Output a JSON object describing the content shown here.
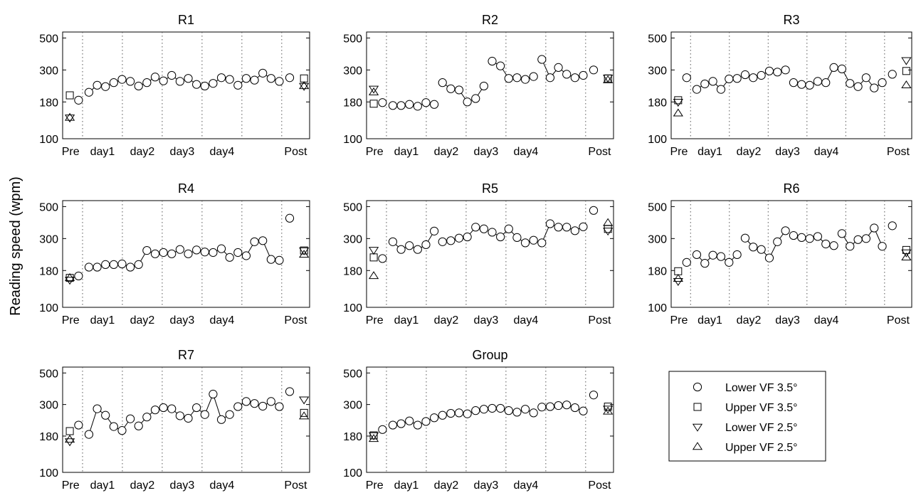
{
  "figure": {
    "ylabel": "Reading speed (wpm)"
  },
  "chart_data": [
    {
      "type": "scatter",
      "title": "R1",
      "yscale": "log",
      "ylim": [
        100,
        550
      ],
      "yticks": [
        100,
        180,
        300,
        500
      ],
      "xticklabels": [
        "Pre",
        "day1",
        "day2",
        "day3",
        "day4",
        "Post"
      ],
      "pre": {
        "upper_3_5": 200,
        "lower_2_5": 140,
        "upper_2_5": 140
      },
      "pre_lower_3_5": 185,
      "training": [
        210,
        235,
        230,
        245,
        258,
        250,
        232,
        245,
        268,
        252,
        275,
        250,
        262,
        238,
        232,
        242,
        265,
        258,
        235,
        262,
        255,
        285,
        262,
        250
      ],
      "post_lower_3_5": 265,
      "post": {
        "upper_3_5": 262,
        "lower_2_5": 232,
        "upper_2_5": 232
      }
    },
    {
      "type": "scatter",
      "title": "R2",
      "yscale": "log",
      "ylim": [
        100,
        550
      ],
      "yticks": [
        100,
        180,
        300,
        500
      ],
      "xticklabels": [
        "Pre",
        "day1",
        "day2",
        "day3",
        "day4",
        "Post"
      ],
      "pre": {
        "upper_3_5": 175,
        "lower_2_5": 222,
        "upper_2_5": 210
      },
      "pre_lower_3_5": 178,
      "training": [
        170,
        170,
        173,
        168,
        178,
        173,
        245,
        222,
        218,
        180,
        190,
        232,
        345,
        320,
        262,
        265,
        258,
        270,
        355,
        265,
        312,
        280,
        265,
        275
      ],
      "post_lower_3_5": 300,
      "post": {
        "upper_3_5": 262,
        "lower_2_5": 265,
        "upper_2_5": 255
      }
    },
    {
      "type": "scatter",
      "title": "R3",
      "yscale": "log",
      "ylim": [
        100,
        550
      ],
      "yticks": [
        100,
        180,
        300,
        500
      ],
      "xticklabels": [
        "Pre",
        "day1",
        "day2",
        "day3",
        "day4",
        "Post"
      ],
      "pre": {
        "upper_3_5": 185,
        "lower_2_5": 180,
        "upper_2_5": 150
      },
      "pre_lower_3_5": 265,
      "training": [
        220,
        240,
        250,
        220,
        260,
        262,
        278,
        265,
        275,
        295,
        290,
        300,
        245,
        238,
        235,
        250,
        245,
        312,
        305,
        242,
        230,
        265,
        225,
        245
      ],
      "post_lower_3_5": 280,
      "post": {
        "upper_3_5": 295,
        "lower_2_5": 350,
        "upper_2_5": 235
      }
    },
    {
      "type": "scatter",
      "title": "R4",
      "yscale": "log",
      "ylim": [
        100,
        550
      ],
      "yticks": [
        100,
        180,
        300,
        500
      ],
      "xticklabels": [
        "Pre",
        "day1",
        "day2",
        "day3",
        "day4",
        "Post"
      ],
      "pre": {
        "upper_3_5": 160,
        "lower_2_5": 155,
        "upper_2_5": 160
      },
      "pre_lower_3_5": 165,
      "training": [
        190,
        190,
        198,
        198,
        200,
        190,
        198,
        248,
        235,
        240,
        235,
        252,
        235,
        250,
        242,
        240,
        255,
        222,
        240,
        228,
        285,
        290,
        215,
        212
      ],
      "post_lower_3_5": 415,
      "post": {
        "upper_3_5": 248,
        "lower_2_5": 248,
        "upper_2_5": 232
      }
    },
    {
      "type": "scatter",
      "title": "R5",
      "yscale": "log",
      "ylim": [
        100,
        550
      ],
      "yticks": [
        100,
        180,
        300,
        500
      ],
      "xticklabels": [
        "Pre",
        "day1",
        "day2",
        "day3",
        "day4",
        "Post"
      ],
      "pre": {
        "upper_3_5": 222,
        "lower_2_5": 250,
        "upper_2_5": 165
      },
      "pre_lower_3_5": 218,
      "training": [
        285,
        252,
        268,
        252,
        272,
        338,
        285,
        290,
        302,
        308,
        360,
        350,
        332,
        308,
        350,
        305,
        280,
        292,
        280,
        380,
        360,
        360,
        340,
        362
      ],
      "post_lower_3_5": 470,
      "post": {
        "upper_3_5": 350,
        "lower_2_5": 340,
        "upper_2_5": 385
      }
    },
    {
      "type": "scatter",
      "title": "R6",
      "yscale": "log",
      "ylim": [
        100,
        550
      ],
      "yticks": [
        100,
        180,
        300,
        500
      ],
      "xticklabels": [
        "Pre",
        "day1",
        "day2",
        "day3",
        "day4",
        "Post"
      ],
      "pre": {
        "upper_3_5": 178,
        "lower_2_5": 152,
        "upper_2_5": 158
      },
      "pre_lower_3_5": 205,
      "training": [
        232,
        202,
        230,
        225,
        205,
        232,
        302,
        262,
        252,
        220,
        285,
        340,
        315,
        305,
        300,
        310,
        275,
        268,
        325,
        265,
        295,
        300,
        355,
        265
      ],
      "post_lower_3_5": 368,
      "post": {
        "upper_3_5": 250,
        "lower_2_5": 240,
        "upper_2_5": 222
      }
    },
    {
      "type": "scatter",
      "title": "R7",
      "yscale": "log",
      "ylim": [
        100,
        550
      ],
      "yticks": [
        100,
        180,
        300,
        500
      ],
      "xticklabels": [
        "Pre",
        "day1",
        "day2",
        "day3",
        "day4",
        "Post"
      ],
      "pre": {
        "upper_3_5": 195,
        "lower_2_5": 165,
        "upper_2_5": 170
      },
      "pre_lower_3_5": 215,
      "training": [
        185,
        280,
        252,
        210,
        197,
        238,
        212,
        245,
        275,
        285,
        280,
        250,
        240,
        285,
        255,
        355,
        235,
        255,
        290,
        315,
        305,
        292,
        315,
        290
      ],
      "post_lower_3_5": 370,
      "post": {
        "upper_3_5": 262,
        "lower_2_5": 325,
        "upper_2_5": 248
      }
    },
    {
      "type": "scatter",
      "title": "Group",
      "yscale": "log",
      "ylim": [
        100,
        550
      ],
      "yticks": [
        100,
        180,
        300,
        500
      ],
      "xticklabels": [
        "Pre",
        "day1",
        "day2",
        "day3",
        "day4",
        "Post"
      ],
      "pre": {
        "upper_3_5": 182,
        "lower_2_5": 182,
        "upper_2_5": 172
      },
      "pre_lower_3_5": 200,
      "training": [
        215,
        220,
        230,
        215,
        228,
        242,
        252,
        260,
        262,
        258,
        272,
        278,
        282,
        282,
        272,
        265,
        278,
        262,
        288,
        290,
        295,
        298,
        285,
        270
      ],
      "post_lower_3_5": 350,
      "post": {
        "upper_3_5": 290,
        "lower_2_5": 280,
        "upper_2_5": 268
      }
    }
  ],
  "legend": {
    "placement": "bottom-right",
    "entries": [
      {
        "marker": "circle",
        "label": "Lower VF 3.5°"
      },
      {
        "marker": "square",
        "label": "Upper VF 3.5°"
      },
      {
        "marker": "triangle-down",
        "label": "Lower VF 2.5°"
      },
      {
        "marker": "triangle-up",
        "label": "Upper VF 2.5°"
      }
    ]
  }
}
